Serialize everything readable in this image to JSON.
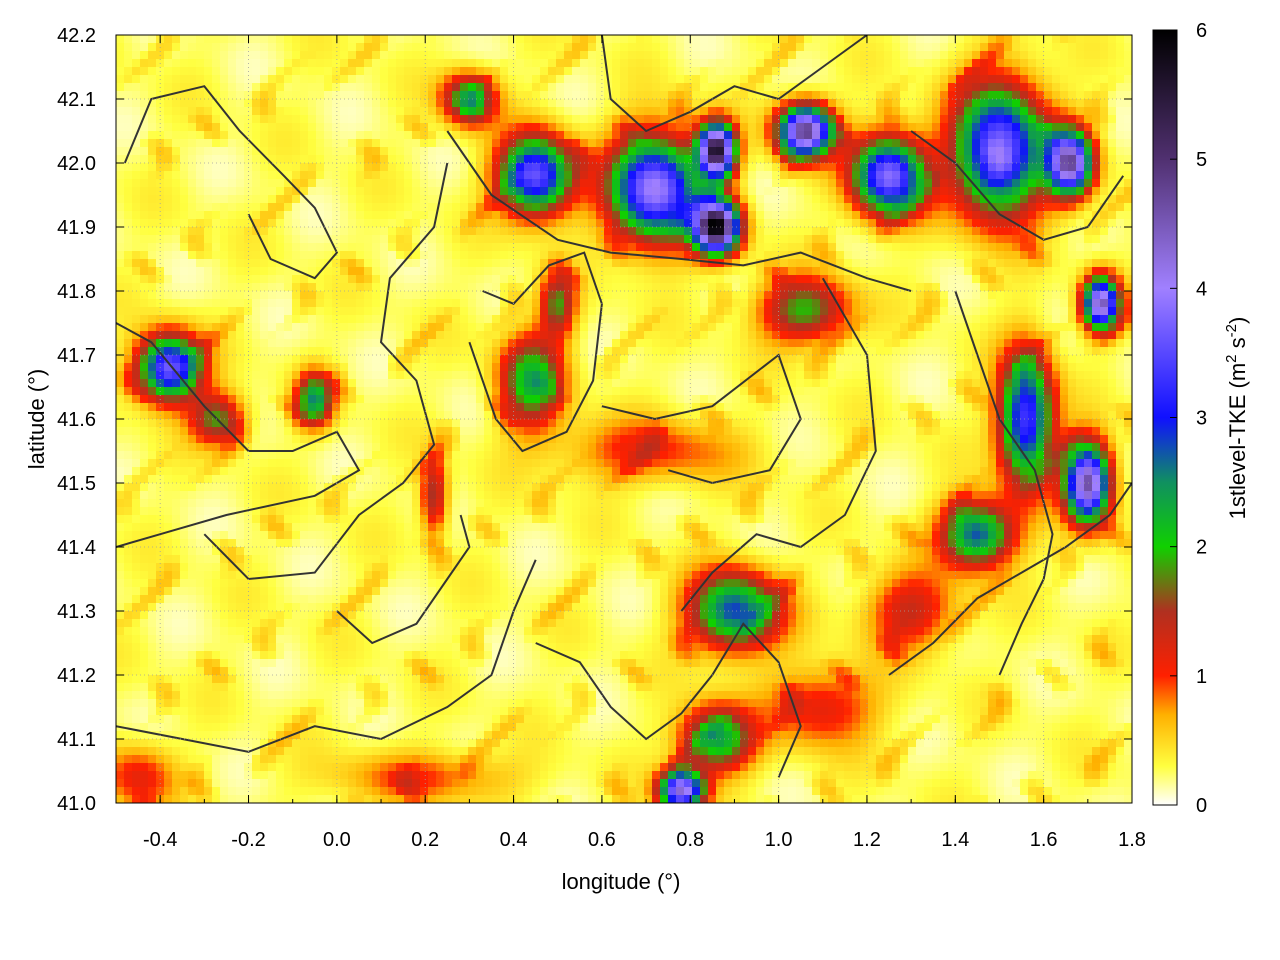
{
  "chart_data": {
    "type": "heatmap",
    "title": "",
    "xlabel": "longitude (°)",
    "ylabel": "latitude (°)",
    "xlim": [
      -0.5,
      1.8
    ],
    "ylim": [
      41.0,
      42.2
    ],
    "x_ticks": [
      -0.4,
      -0.2,
      0.0,
      0.2,
      0.4,
      0.6,
      0.8,
      1.0,
      1.2,
      1.4,
      1.6,
      1.8
    ],
    "x_tick_labels": [
      "-0.4",
      "-0.2",
      "0.0",
      "0.2",
      "0.4",
      "0.6",
      "0.8",
      "1.0",
      "1.2",
      "1.4",
      "1.6",
      "1.8"
    ],
    "y_ticks": [
      41.0,
      41.1,
      41.2,
      41.3,
      41.4,
      41.5,
      41.6,
      41.7,
      41.8,
      41.9,
      42.0,
      42.1,
      42.2
    ],
    "y_tick_labels": [
      "41.0",
      "41.1",
      "41.2",
      "41.3",
      "41.4",
      "41.5",
      "41.6",
      "41.7",
      "41.8",
      "41.9",
      "42.0",
      "42.1",
      "42.2"
    ],
    "grid": true,
    "colorbar": {
      "label_main": "1stlevel-TKE (m",
      "label_sup1": "2",
      "label_mid": " s",
      "label_sup2": "-2",
      "label_end": ")",
      "range": [
        0,
        6
      ],
      "ticks": [
        0,
        1,
        2,
        3,
        4,
        5,
        6
      ],
      "tick_labels": [
        "0",
        "1",
        "2",
        "3",
        "4",
        "5",
        "6"
      ],
      "stops": [
        {
          "value": 0.0,
          "color": "#ffffff"
        },
        {
          "value": 0.3,
          "color": "#ffff40"
        },
        {
          "value": 0.7,
          "color": "#ffb000"
        },
        {
          "value": 1.0,
          "color": "#ff2000"
        },
        {
          "value": 1.5,
          "color": "#b03020"
        },
        {
          "value": 2.0,
          "color": "#10d000"
        },
        {
          "value": 2.5,
          "color": "#109060"
        },
        {
          "value": 3.0,
          "color": "#1010ff"
        },
        {
          "value": 4.0,
          "color": "#a080ff"
        },
        {
          "value": 5.0,
          "color": "#503070"
        },
        {
          "value": 6.0,
          "color": "#000000"
        }
      ]
    },
    "hotspots": [
      {
        "lon": -0.38,
        "lat": 41.68,
        "sx": 0.07,
        "sy": 0.05,
        "amp": 3.5
      },
      {
        "lon": -0.27,
        "lat": 41.6,
        "sx": 0.06,
        "sy": 0.04,
        "amp": 1.6
      },
      {
        "lon": -0.05,
        "lat": 41.63,
        "sx": 0.04,
        "sy": 0.04,
        "amp": 2.2
      },
      {
        "lon": 0.22,
        "lat": 41.48,
        "sx": 0.03,
        "sy": 0.06,
        "amp": 1.4
      },
      {
        "lon": 0.44,
        "lat": 41.66,
        "sx": 0.07,
        "sy": 0.07,
        "amp": 2.0
      },
      {
        "lon": 0.5,
        "lat": 41.78,
        "sx": 0.04,
        "sy": 0.05,
        "amp": 1.5
      },
      {
        "lon": 0.3,
        "lat": 42.1,
        "sx": 0.06,
        "sy": 0.04,
        "amp": 2.0
      },
      {
        "lon": 0.45,
        "lat": 41.98,
        "sx": 0.08,
        "sy": 0.06,
        "amp": 3.4
      },
      {
        "lon": 0.72,
        "lat": 41.96,
        "sx": 0.1,
        "sy": 0.08,
        "amp": 3.8
      },
      {
        "lon": 0.86,
        "lat": 41.9,
        "sx": 0.05,
        "sy": 0.04,
        "amp": 5.5
      },
      {
        "lon": 0.86,
        "lat": 42.02,
        "sx": 0.04,
        "sy": 0.04,
        "amp": 5.2
      },
      {
        "lon": 1.06,
        "lat": 42.05,
        "sx": 0.06,
        "sy": 0.04,
        "amp": 4.6
      },
      {
        "lon": 1.25,
        "lat": 41.98,
        "sx": 0.08,
        "sy": 0.06,
        "amp": 3.6
      },
      {
        "lon": 1.5,
        "lat": 42.02,
        "sx": 0.1,
        "sy": 0.1,
        "amp": 3.6
      },
      {
        "lon": 1.66,
        "lat": 42.0,
        "sx": 0.05,
        "sy": 0.05,
        "amp": 4.2
      },
      {
        "lon": 1.73,
        "lat": 41.78,
        "sx": 0.04,
        "sy": 0.04,
        "amp": 4.2
      },
      {
        "lon": 1.06,
        "lat": 41.77,
        "sx": 0.1,
        "sy": 0.05,
        "amp": 1.7
      },
      {
        "lon": 1.56,
        "lat": 41.6,
        "sx": 0.06,
        "sy": 0.1,
        "amp": 3.2
      },
      {
        "lon": 1.7,
        "lat": 41.5,
        "sx": 0.05,
        "sy": 0.06,
        "amp": 4.4
      },
      {
        "lon": 1.45,
        "lat": 41.42,
        "sx": 0.08,
        "sy": 0.05,
        "amp": 2.6
      },
      {
        "lon": 0.9,
        "lat": 41.3,
        "sx": 0.1,
        "sy": 0.06,
        "amp": 2.6
      },
      {
        "lon": 0.86,
        "lat": 41.1,
        "sx": 0.08,
        "sy": 0.05,
        "amp": 2.2
      },
      {
        "lon": 0.78,
        "lat": 41.02,
        "sx": 0.05,
        "sy": 0.03,
        "amp": 4.0
      },
      {
        "lon": 1.3,
        "lat": 41.3,
        "sx": 0.1,
        "sy": 0.06,
        "amp": 1.1
      },
      {
        "lon": 1.1,
        "lat": 41.15,
        "sx": 0.12,
        "sy": 0.06,
        "amp": 1.0
      },
      {
        "lon": 0.7,
        "lat": 41.55,
        "sx": 0.2,
        "sy": 0.05,
        "amp": 0.8
      },
      {
        "lon": 0.2,
        "lat": 41.04,
        "sx": 0.2,
        "sy": 0.04,
        "amp": 0.7
      },
      {
        "lon": -0.45,
        "lat": 41.04,
        "sx": 0.08,
        "sy": 0.05,
        "amp": 0.9
      }
    ]
  }
}
